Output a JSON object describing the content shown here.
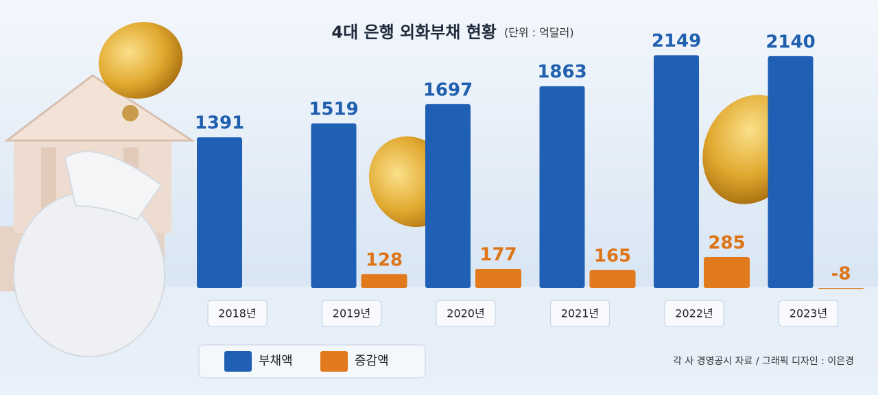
{
  "chart_data": {
    "type": "bar",
    "title": "4대 은행 외화부채 현황",
    "subtitle": "(단위 : 억달러)",
    "categories": [
      "2018년",
      "2019년",
      "2020년",
      "2021년",
      "2022년",
      "2023년"
    ],
    "series": [
      {
        "name": "부채액",
        "color": "#1f5fb4",
        "label_color": "#1f5fae",
        "values": [
          1391,
          1519,
          1697,
          1863,
          2149,
          2140
        ]
      },
      {
        "name": "증감액",
        "color": "#e07a1c",
        "label_color": "#de7418",
        "values": [
          null,
          128,
          177,
          165,
          285,
          -8
        ]
      }
    ],
    "source": "각 사 경영공시 자료 / 그래픽 디자인 : 이은경"
  }
}
